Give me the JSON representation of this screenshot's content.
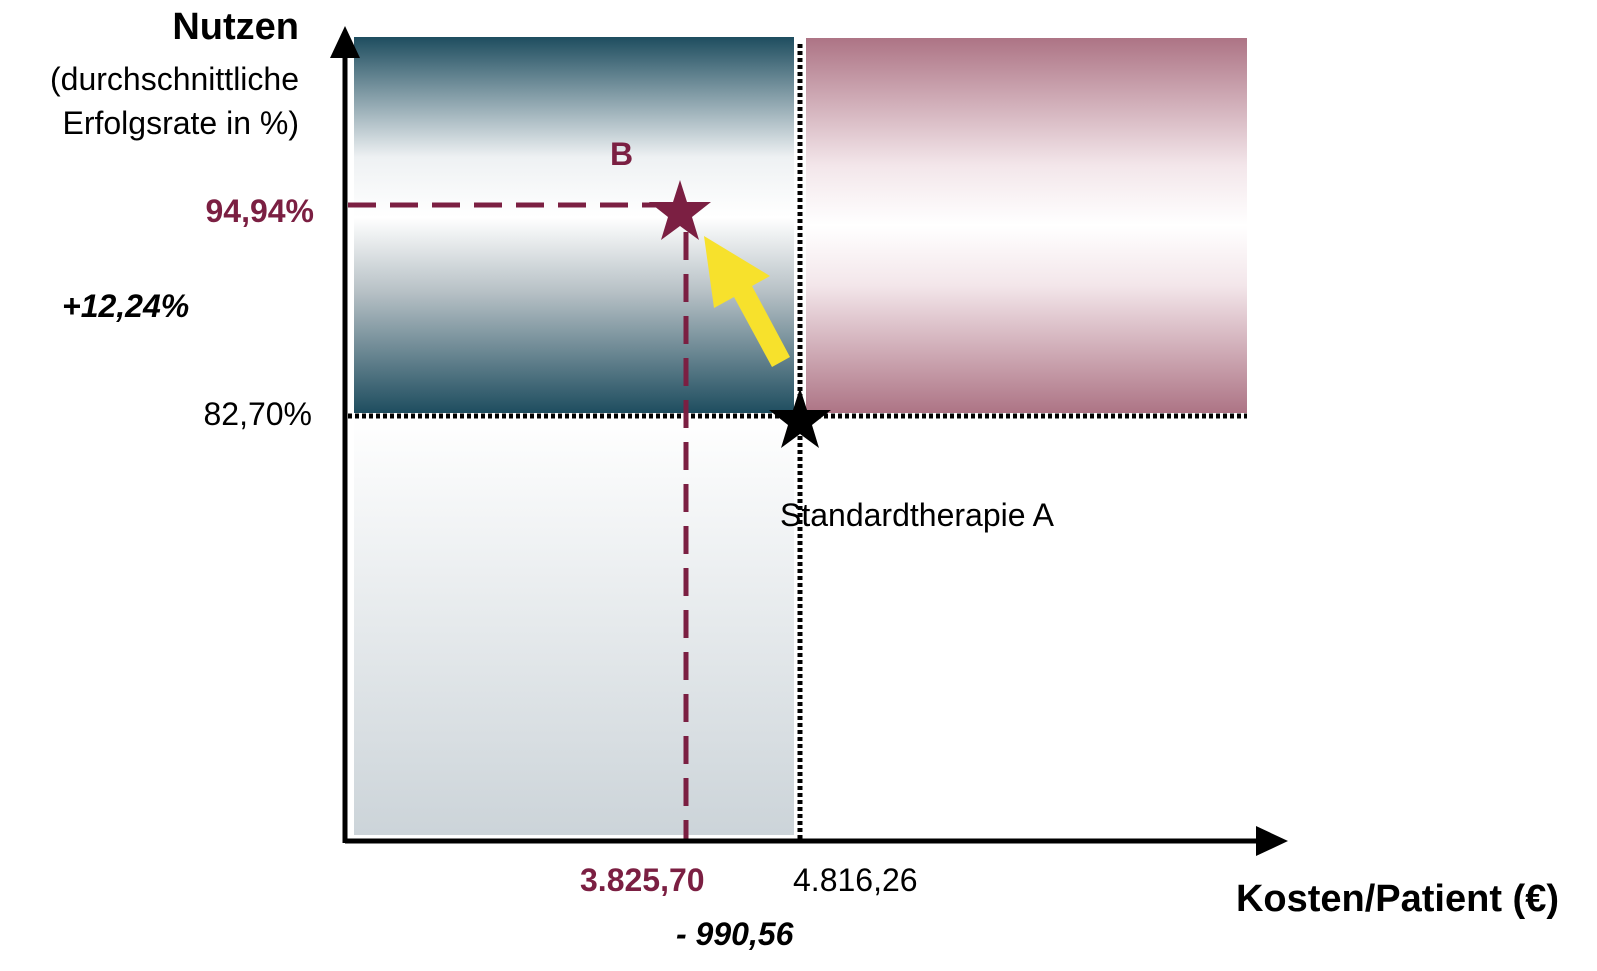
{
  "axes": {
    "y_title": "Nutzen",
    "y_subtitle": "(durchschnittliche Erfolgsrate in %)",
    "x_title": "Kosten/Patient (€)"
  },
  "therapy_a": {
    "label": "Standardtherapie A",
    "cost_label": "4.816,26",
    "benefit_label": "82,70%",
    "cost": 4816.26,
    "benefit": 82.7
  },
  "therapy_b": {
    "label": "B",
    "cost_label": "3.825,70",
    "benefit_label": "94,94%",
    "cost": 3825.7,
    "benefit": 94.94
  },
  "deltas": {
    "benefit": "+12,24%",
    "cost": "- 990,56"
  },
  "colors": {
    "therapy_b": "#7b1f42",
    "quadrant_teal": "#1e4d5f",
    "quadrant_mauve": "#ad7485",
    "arrow": "#f7e12c",
    "axis": "#000000"
  },
  "icons": {
    "marker_a": "star",
    "marker_b": "star",
    "improvement": "arrow"
  }
}
